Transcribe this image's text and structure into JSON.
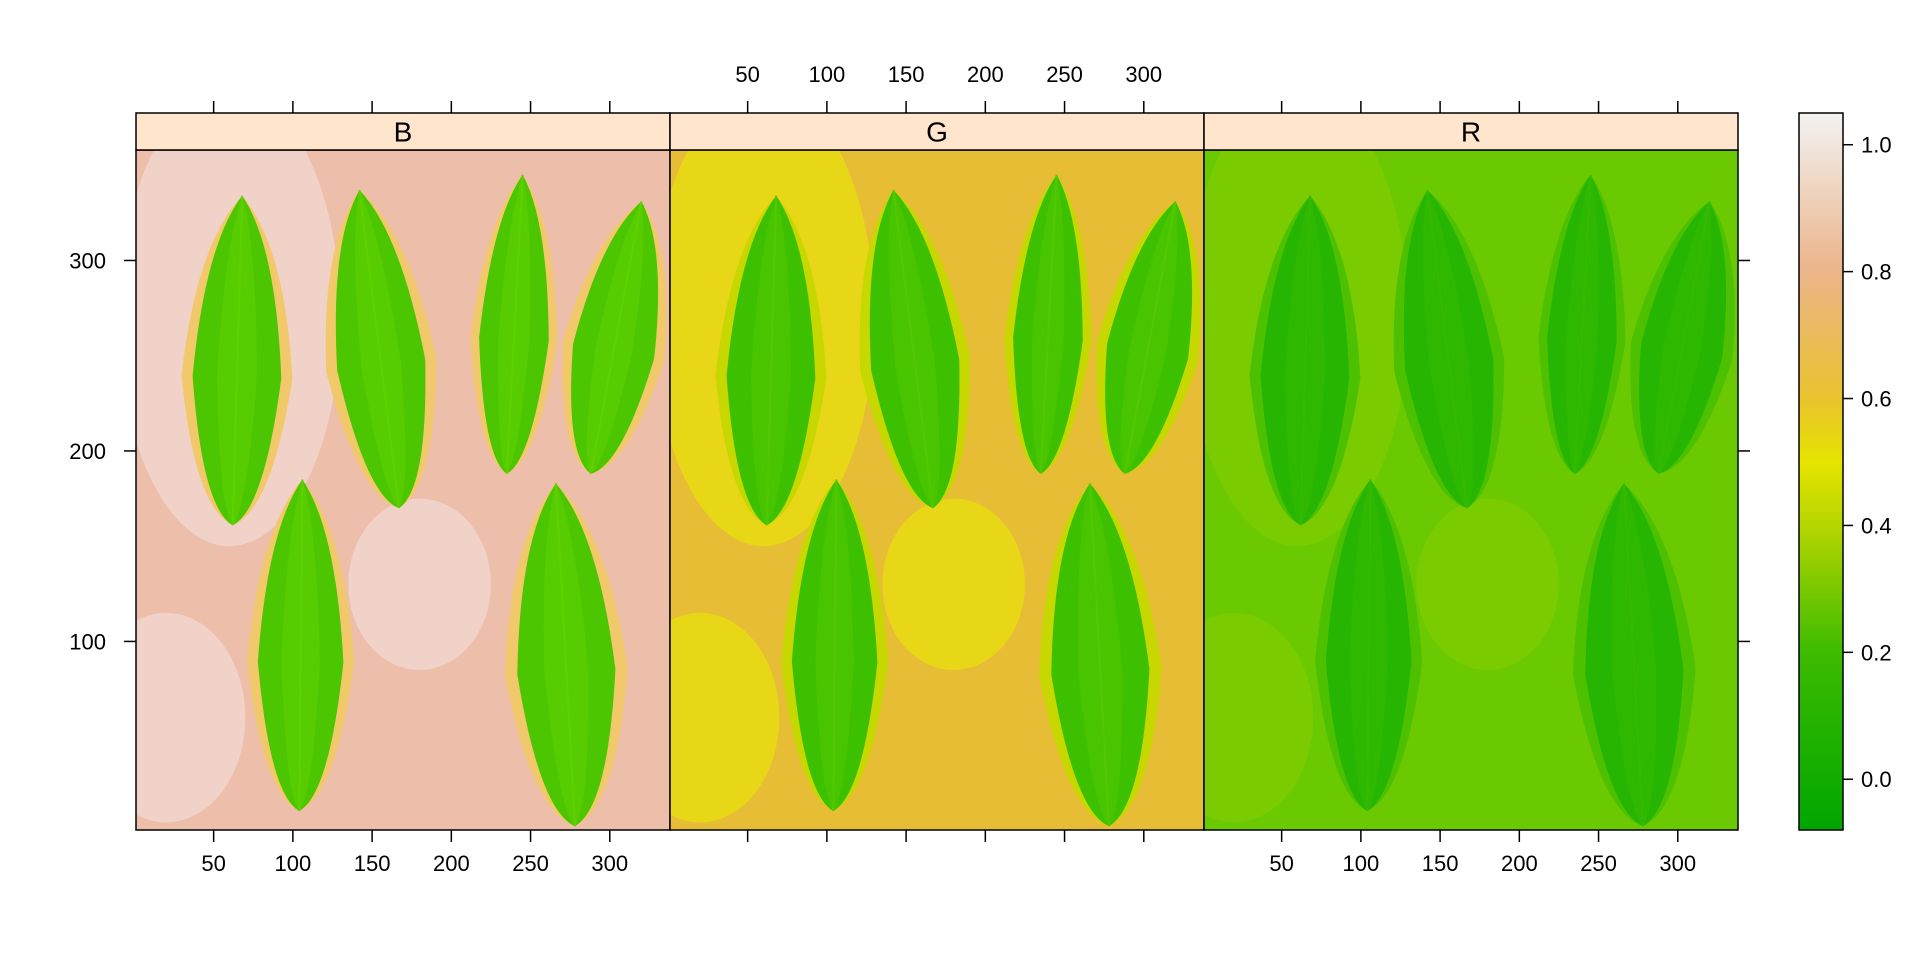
{
  "chart_data": {
    "type": "heatmap",
    "panels": [
      {
        "name": "B",
        "background": "#edbfaa",
        "light_region": "#f0d5cf",
        "leaf_fill": "#4cc600",
        "leaf_edge": "#f2c96a",
        "leaf_vein": "#5fd100"
      },
      {
        "name": "G",
        "background": "#e7bd36",
        "light_region": "#e8dc10",
        "leaf_fill": "#3cc000",
        "leaf_edge": "#c6d800",
        "leaf_vein": "#52c800"
      },
      {
        "name": "R",
        "background": "#6ac900",
        "light_region": "#7ccd00",
        "leaf_fill": "#26b500",
        "leaf_edge": "#4dc100",
        "leaf_vein": "#35ba00"
      }
    ],
    "x_range": [
      1,
      338
    ],
    "y_range": [
      1,
      358
    ],
    "x_ticks": [
      50,
      100,
      150,
      200,
      250,
      300
    ],
    "x_tick_labels": [
      "50",
      "100",
      "150",
      "200",
      "250",
      "300"
    ],
    "y_ticks": [
      100,
      200,
      300
    ],
    "y_tick_labels": [
      "100",
      "200",
      "300"
    ],
    "leaves_data_units": [
      {
        "tip": [
          68,
          334
        ],
        "base": [
          62,
          161
        ],
        "half_width": 28
      },
      {
        "tip": [
          142,
          337
        ],
        "base": [
          167,
          170
        ],
        "half_width": 28
      },
      {
        "tip": [
          245,
          345
        ],
        "base": [
          235,
          188
        ],
        "half_width": 22
      },
      {
        "tip": [
          320,
          331
        ],
        "base": [
          288,
          188
        ],
        "half_width": 26
      },
      {
        "tip": [
          106,
          185
        ],
        "base": [
          104,
          11
        ],
        "half_width": 27
      },
      {
        "tip": [
          266,
          183
        ],
        "base": [
          278,
          3
        ],
        "half_width": 31
      }
    ],
    "colorbar": {
      "range": [
        -0.08,
        1.05
      ],
      "ticks": [
        0.0,
        0.2,
        0.4,
        0.6,
        0.8,
        1.0
      ],
      "tick_labels": [
        "0.0",
        "0.2",
        "0.4",
        "0.6",
        "0.8",
        "1.0"
      ],
      "stops": [
        {
          "value": -0.08,
          "color": "#00a600"
        },
        {
          "value": 0.2,
          "color": "#3dbb00"
        },
        {
          "value": 0.4,
          "color": "#b6d600"
        },
        {
          "value": 0.5,
          "color": "#e6e400"
        },
        {
          "value": 0.6,
          "color": "#e8c32e"
        },
        {
          "value": 0.8,
          "color": "#ebb48a"
        },
        {
          "value": 1.05,
          "color": "#f2f2f2"
        }
      ]
    },
    "strip_color": "#ffe5cc",
    "top_axis_labels_panel": 1,
    "bottom_axis_labels_panels": [
      0,
      2
    ],
    "right_axis_labels": false
  }
}
